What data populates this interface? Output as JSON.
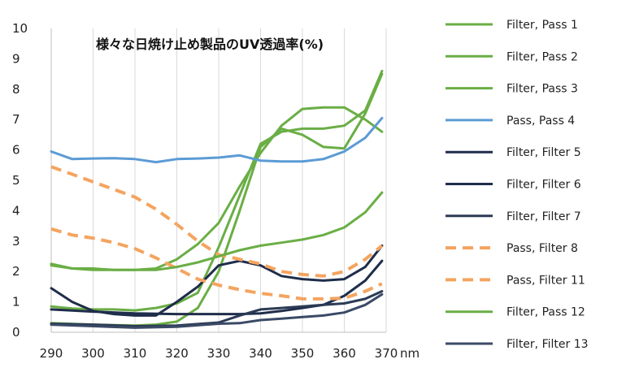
{
  "chart_data": {
    "type": "line",
    "title": "様々な日焼け止め製品のUV透過率(%)",
    "x_unit": "nm",
    "xlim": [
      290,
      370
    ],
    "ylim": [
      0,
      10
    ],
    "x_ticks": [
      290,
      300,
      310,
      320,
      330,
      340,
      350,
      360,
      370
    ],
    "y_ticks": [
      0,
      1,
      2,
      3,
      4,
      5,
      6,
      7,
      8,
      9,
      10
    ],
    "grid": "vertical",
    "legend": "right",
    "series": [
      {
        "name": "Filter, Pass 1",
        "color": "#6aae45",
        "dash": "solid",
        "points": [
          [
            290,
            0.85
          ],
          [
            295,
            0.78
          ],
          [
            300,
            0.75
          ],
          [
            305,
            0.75
          ],
          [
            310,
            0.72
          ],
          [
            315,
            0.8
          ],
          [
            320,
            0.95
          ],
          [
            325,
            1.3
          ],
          [
            330,
            2.8
          ],
          [
            335,
            4.5
          ],
          [
            340,
            6.2
          ],
          [
            345,
            6.6
          ],
          [
            350,
            6.7
          ],
          [
            355,
            6.7
          ],
          [
            360,
            6.8
          ],
          [
            365,
            7.3
          ],
          [
            369,
            8.6
          ]
        ]
      },
      {
        "name": "Filter, Pass 2",
        "color": "#6aae45",
        "dash": "solid",
        "points": [
          [
            290,
            0.3
          ],
          [
            300,
            0.25
          ],
          [
            310,
            0.22
          ],
          [
            315,
            0.25
          ],
          [
            320,
            0.35
          ],
          [
            325,
            0.8
          ],
          [
            330,
            2.0
          ],
          [
            335,
            4.0
          ],
          [
            340,
            6.1
          ],
          [
            345,
            6.7
          ],
          [
            350,
            6.5
          ],
          [
            355,
            6.1
          ],
          [
            360,
            6.05
          ],
          [
            365,
            7.2
          ],
          [
            369,
            8.5
          ]
        ]
      },
      {
        "name": "Filter, Pass 3",
        "color": "#6aae45",
        "dash": "solid",
        "points": [
          [
            290,
            2.25
          ],
          [
            295,
            2.1
          ],
          [
            300,
            2.1
          ],
          [
            305,
            2.05
          ],
          [
            310,
            2.05
          ],
          [
            315,
            2.1
          ],
          [
            320,
            2.4
          ],
          [
            325,
            2.9
          ],
          [
            330,
            3.6
          ],
          [
            335,
            4.8
          ],
          [
            340,
            5.9
          ],
          [
            345,
            6.8
          ],
          [
            350,
            7.35
          ],
          [
            355,
            7.4
          ],
          [
            360,
            7.4
          ],
          [
            365,
            7.0
          ],
          [
            369,
            6.6
          ]
        ]
      },
      {
        "name": "Pass, Pass 4",
        "color": "#5b9bd5",
        "dash": "solid",
        "points": [
          [
            290,
            5.95
          ],
          [
            295,
            5.7
          ],
          [
            300,
            5.72
          ],
          [
            305,
            5.73
          ],
          [
            310,
            5.7
          ],
          [
            315,
            5.6
          ],
          [
            320,
            5.7
          ],
          [
            325,
            5.72
          ],
          [
            330,
            5.75
          ],
          [
            335,
            5.82
          ],
          [
            340,
            5.65
          ],
          [
            345,
            5.62
          ],
          [
            350,
            5.62
          ],
          [
            355,
            5.7
          ],
          [
            360,
            5.95
          ],
          [
            365,
            6.4
          ],
          [
            369,
            7.05
          ]
        ]
      },
      {
        "name": "Filter, Filter 5",
        "color": "#1f2d4a",
        "dash": "solid",
        "points": [
          [
            290,
            1.45
          ],
          [
            295,
            1.0
          ],
          [
            300,
            0.7
          ],
          [
            305,
            0.6
          ],
          [
            310,
            0.55
          ],
          [
            315,
            0.55
          ],
          [
            320,
            1.0
          ],
          [
            325,
            1.5
          ],
          [
            330,
            2.2
          ],
          [
            335,
            2.35
          ],
          [
            340,
            2.2
          ],
          [
            345,
            1.85
          ],
          [
            350,
            1.75
          ],
          [
            355,
            1.7
          ],
          [
            360,
            1.75
          ],
          [
            365,
            2.15
          ],
          [
            369,
            2.85
          ]
        ]
      },
      {
        "name": "Filter, Filter 6",
        "color": "#1f2d4a",
        "dash": "solid",
        "points": [
          [
            290,
            0.75
          ],
          [
            300,
            0.68
          ],
          [
            310,
            0.62
          ],
          [
            320,
            0.6
          ],
          [
            330,
            0.6
          ],
          [
            335,
            0.6
          ],
          [
            340,
            0.62
          ],
          [
            345,
            0.7
          ],
          [
            350,
            0.8
          ],
          [
            355,
            0.9
          ],
          [
            360,
            1.2
          ],
          [
            365,
            1.7
          ],
          [
            369,
            2.35
          ]
        ]
      },
      {
        "name": "Filter, Filter 7",
        "color": "#2b3a55",
        "dash": "solid",
        "points": [
          [
            290,
            0.28
          ],
          [
            300,
            0.25
          ],
          [
            310,
            0.2
          ],
          [
            320,
            0.22
          ],
          [
            330,
            0.32
          ],
          [
            335,
            0.55
          ],
          [
            340,
            0.75
          ],
          [
            345,
            0.8
          ],
          [
            350,
            0.85
          ],
          [
            355,
            0.9
          ],
          [
            360,
            0.95
          ],
          [
            365,
            1.1
          ],
          [
            369,
            1.35
          ]
        ]
      },
      {
        "name": "Pass, Filter 8",
        "color": "#f4a460",
        "dash": "dashed",
        "points": [
          [
            290,
            5.45
          ],
          [
            295,
            5.2
          ],
          [
            300,
            4.95
          ],
          [
            305,
            4.7
          ],
          [
            310,
            4.45
          ],
          [
            315,
            4.05
          ],
          [
            320,
            3.55
          ],
          [
            325,
            3.0
          ],
          [
            330,
            2.55
          ],
          [
            335,
            2.4
          ],
          [
            340,
            2.25
          ],
          [
            345,
            2.0
          ],
          [
            350,
            1.9
          ],
          [
            355,
            1.85
          ],
          [
            360,
            2.0
          ],
          [
            365,
            2.4
          ],
          [
            369,
            2.85
          ]
        ]
      },
      {
        "name": "Pass, Filter 11",
        "color": "#f4a460",
        "dash": "dashed",
        "points": [
          [
            290,
            3.4
          ],
          [
            295,
            3.2
          ],
          [
            300,
            3.1
          ],
          [
            305,
            2.95
          ],
          [
            310,
            2.75
          ],
          [
            315,
            2.45
          ],
          [
            320,
            2.1
          ],
          [
            325,
            1.75
          ],
          [
            330,
            1.55
          ],
          [
            335,
            1.4
          ],
          [
            340,
            1.28
          ],
          [
            345,
            1.2
          ],
          [
            350,
            1.1
          ],
          [
            355,
            1.1
          ],
          [
            360,
            1.12
          ],
          [
            365,
            1.35
          ],
          [
            369,
            1.6
          ]
        ]
      },
      {
        "name": "Filter, Pass 12",
        "color": "#6aae45",
        "dash": "solid",
        "points": [
          [
            290,
            2.2
          ],
          [
            295,
            2.1
          ],
          [
            300,
            2.05
          ],
          [
            305,
            2.05
          ],
          [
            310,
            2.05
          ],
          [
            315,
            2.05
          ],
          [
            320,
            2.15
          ],
          [
            325,
            2.3
          ],
          [
            330,
            2.5
          ],
          [
            335,
            2.7
          ],
          [
            340,
            2.85
          ],
          [
            345,
            2.95
          ],
          [
            350,
            3.05
          ],
          [
            355,
            3.2
          ],
          [
            360,
            3.45
          ],
          [
            365,
            3.95
          ],
          [
            369,
            4.6
          ]
        ]
      },
      {
        "name": "Filter, Filter 13",
        "color": "#3a4a66",
        "dash": "solid",
        "points": [
          [
            290,
            0.25
          ],
          [
            300,
            0.2
          ],
          [
            310,
            0.15
          ],
          [
            320,
            0.18
          ],
          [
            330,
            0.28
          ],
          [
            335,
            0.3
          ],
          [
            340,
            0.4
          ],
          [
            345,
            0.45
          ],
          [
            350,
            0.5
          ],
          [
            355,
            0.55
          ],
          [
            360,
            0.65
          ],
          [
            365,
            0.9
          ],
          [
            369,
            1.25
          ]
        ]
      }
    ]
  }
}
